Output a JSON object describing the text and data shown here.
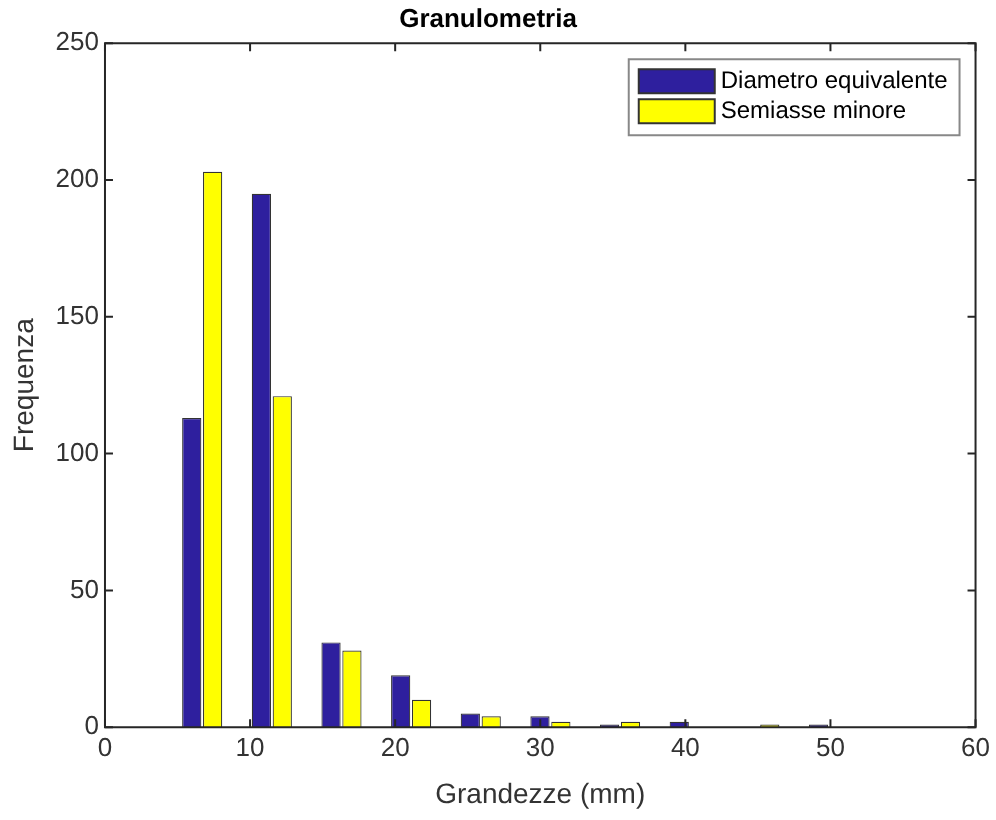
{
  "chart_data": {
    "type": "bar",
    "title": "Granulometria",
    "xlabel": "Grandezze (mm)",
    "ylabel": "Frequenza",
    "x": [
      6.7,
      11.5,
      16.3,
      21.1,
      25.9,
      30.7,
      35.5,
      40.3,
      45.1,
      49.9
    ],
    "series": [
      {
        "name": "Diametro equivalente",
        "color": "#2e1f9e",
        "values": [
          113,
          195,
          31,
          19,
          5,
          4,
          1,
          2,
          0,
          1
        ]
      },
      {
        "name": "Semiasse minore",
        "color": "#ffff00",
        "values": [
          203,
          121,
          28,
          10,
          4,
          2,
          2,
          0,
          1,
          0
        ]
      }
    ],
    "xlim": [
      0,
      60
    ],
    "xticks": [
      0,
      10,
      20,
      30,
      40,
      50,
      60
    ],
    "ylim": [
      0,
      250
    ],
    "yticks": [
      0,
      50,
      100,
      150,
      200,
      250
    ],
    "grid": false,
    "legend": "top right"
  }
}
